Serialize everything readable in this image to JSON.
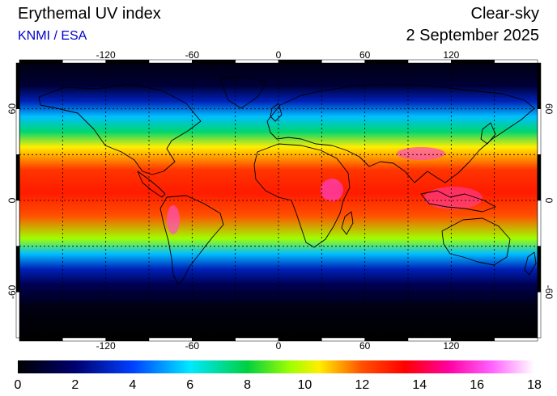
{
  "header": {
    "title": "Erythemal UV index",
    "source": "KNMI / ESA",
    "source_color": "#0000cc",
    "mode": "Clear-sky",
    "date": "2 September 2025"
  },
  "map": {
    "projection": "equirectangular",
    "lon_range": [
      -180,
      180
    ],
    "lat_range": [
      -90,
      90
    ],
    "lon_ticks": [
      "-120",
      "-60",
      "0",
      "60",
      "120"
    ],
    "lon_tick_values": [
      -120,
      -60,
      0,
      60,
      120
    ],
    "lat_ticks": [
      "60",
      "0",
      "-60"
    ],
    "lat_tick_values": [
      60,
      0,
      -60
    ],
    "gridlines": "dotted every 30 degrees",
    "coastlines": "black outline",
    "uv_profile_by_latitude": [
      {
        "lat": 90,
        "uv": 0.3
      },
      {
        "lat": 75,
        "uv": 1.0
      },
      {
        "lat": 65,
        "uv": 3.0
      },
      {
        "lat": 55,
        "uv": 5.5
      },
      {
        "lat": 45,
        "uv": 7.5
      },
      {
        "lat": 35,
        "uv": 10.5
      },
      {
        "lat": 20,
        "uv": 12.5
      },
      {
        "lat": 5,
        "uv": 13.0
      },
      {
        "lat": -10,
        "uv": 12.0
      },
      {
        "lat": -25,
        "uv": 9.5
      },
      {
        "lat": -35,
        "uv": 5.5
      },
      {
        "lat": -45,
        "uv": 3.0
      },
      {
        "lat": -55,
        "uv": 1.5
      },
      {
        "lat": -70,
        "uv": 0.3
      },
      {
        "lat": -90,
        "uv": 0.0
      }
    ]
  },
  "colorbar": {
    "min": 0,
    "max": 18,
    "tick_labels": [
      "0",
      "2",
      "4",
      "6",
      "8",
      "10",
      "12",
      "14",
      "16",
      "18"
    ],
    "stops": [
      {
        "v": 0,
        "c": "#000000"
      },
      {
        "v": 2,
        "c": "#00006e"
      },
      {
        "v": 4,
        "c": "#0040ff"
      },
      {
        "v": 6,
        "c": "#00e8ff"
      },
      {
        "v": 8,
        "c": "#00d040"
      },
      {
        "v": 9.5,
        "c": "#a0ff00"
      },
      {
        "v": 10.5,
        "c": "#ffee00"
      },
      {
        "v": 12,
        "c": "#ff5000"
      },
      {
        "v": 13.5,
        "c": "#ff0000"
      },
      {
        "v": 15,
        "c": "#ff00a0"
      },
      {
        "v": 16.5,
        "c": "#ff60ff"
      },
      {
        "v": 18,
        "c": "#ffffff"
      }
    ]
  }
}
